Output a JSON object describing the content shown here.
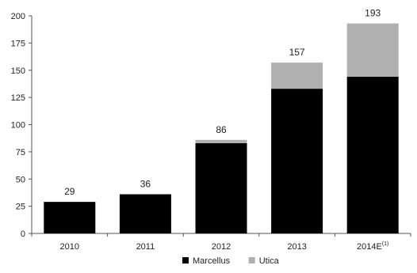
{
  "chart_data": {
    "type": "bar",
    "stacked": true,
    "categories": [
      "2010",
      "2011",
      "2012",
      "2013",
      "2014E"
    ],
    "category_superscripts": [
      "",
      "",
      "",
      "",
      "(1)"
    ],
    "series": [
      {
        "name": "Marcellus",
        "values": [
          29,
          36,
          83,
          133,
          144
        ],
        "color": "#000000"
      },
      {
        "name": "Utica",
        "values": [
          0,
          0,
          3,
          24,
          49
        ],
        "color": "#b0b0b0"
      }
    ],
    "totals": [
      "29",
      "36",
      "86",
      "157",
      "193"
    ],
    "ylim": [
      0,
      200
    ],
    "yticks": [
      "0",
      "25",
      "50",
      "75",
      "100",
      "125",
      "150",
      "175",
      "200"
    ],
    "grid": false,
    "legend_position": "bottom-center"
  }
}
